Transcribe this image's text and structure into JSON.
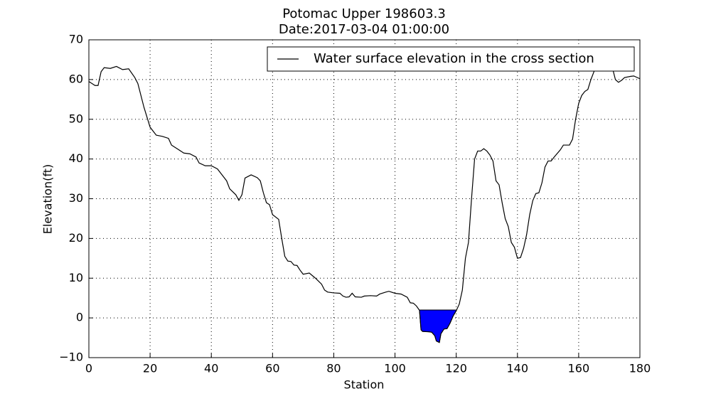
{
  "chart_data": {
    "type": "line",
    "title": "Potomac Upper 198603.3",
    "subtitle": "Date:2017-03-04 01:00:00",
    "x_label": "Station",
    "y_label": "Elevation(ft)",
    "x": [
      0,
      2,
      3,
      4,
      5,
      7,
      9,
      11,
      13,
      15,
      16,
      18,
      20,
      22,
      24,
      26,
      27,
      29,
      31,
      33,
      35,
      36,
      38,
      40,
      42,
      44,
      45,
      46,
      48,
      49,
      50,
      51,
      53,
      55,
      56,
      57,
      58,
      59,
      60,
      62,
      63,
      64,
      65,
      66,
      67,
      68,
      69,
      70,
      72,
      74,
      76,
      77,
      78,
      80,
      82,
      83,
      84,
      85,
      86,
      87,
      89,
      90,
      92,
      94,
      95,
      97,
      98,
      100,
      102,
      104,
      105,
      106,
      107,
      108,
      108.5,
      109,
      111,
      112,
      113,
      113.5,
      114.5,
      115,
      116,
      117,
      118,
      119,
      120,
      121,
      122,
      123,
      124,
      125,
      126,
      127,
      128,
      129,
      130,
      131,
      132,
      133,
      134,
      135,
      136,
      137,
      138,
      139,
      140,
      141,
      142,
      143,
      144,
      145,
      146,
      147,
      148,
      149,
      150,
      151,
      152,
      154,
      155,
      157,
      158,
      159,
      160,
      161,
      162,
      163,
      164,
      165,
      166,
      167,
      168,
      169,
      170,
      171,
      172,
      173,
      174,
      175,
      177,
      178,
      180
    ],
    "values": [
      59.5,
      58.5,
      58.5,
      62,
      63,
      62.8,
      63.3,
      62.5,
      62.7,
      60.5,
      59,
      53,
      48,
      46,
      45.7,
      45.2,
      43.5,
      42.5,
      41.5,
      41.3,
      40.5,
      39,
      38.3,
      38.3,
      37.5,
      35.5,
      34.5,
      32.5,
      31,
      29.6,
      31,
      35.2,
      36,
      35.3,
      34.5,
      31.5,
      29,
      28.5,
      26,
      24.8,
      20,
      15.5,
      14.3,
      14.2,
      13.3,
      13.2,
      12,
      11,
      11.3,
      10,
      8.5,
      7,
      6.5,
      6.3,
      6.2,
      5.5,
      5.2,
      5.3,
      6.2,
      5.3,
      5.2,
      5.5,
      5.6,
      5.5,
      6,
      6.5,
      6.7,
      6.2,
      6,
      5.2,
      3.8,
      3.7,
      3,
      1.9,
      -3,
      -3.4,
      -3.5,
      -3.6,
      -4.5,
      -5.8,
      -6.2,
      -4,
      -2.8,
      -2.7,
      -1.3,
      0.5,
      1.8,
      3.5,
      7,
      15,
      19,
      30,
      40,
      42,
      42,
      42.6,
      42,
      41,
      39.5,
      34.5,
      33.5,
      29,
      25,
      23,
      19,
      17.8,
      15,
      15.2,
      17.5,
      21,
      26,
      29.5,
      31.3,
      31.5,
      34,
      38,
      39.5,
      39.5,
      40.5,
      42.3,
      43.5,
      43.5,
      45,
      50,
      54,
      56,
      57,
      57.5,
      60,
      62,
      63.5,
      64,
      65,
      64,
      64,
      63,
      60,
      59.3,
      59.8,
      60.5,
      60.8,
      60.9,
      60.2
    ],
    "color": "#000000",
    "water_surface": {
      "name": "Water surface elevation in the cross section",
      "elevation": 2,
      "color": "#0000ff"
    },
    "xlim": [
      0,
      180
    ],
    "xticks": [
      0,
      20,
      40,
      60,
      80,
      100,
      120,
      140,
      160,
      180
    ],
    "ylim": [
      -10,
      70
    ],
    "yticks": [
      {
        "value": -10,
        "label": "−10"
      },
      0,
      10,
      20,
      30,
      40,
      50,
      60,
      70
    ],
    "grid": true,
    "legend": "upper right"
  }
}
